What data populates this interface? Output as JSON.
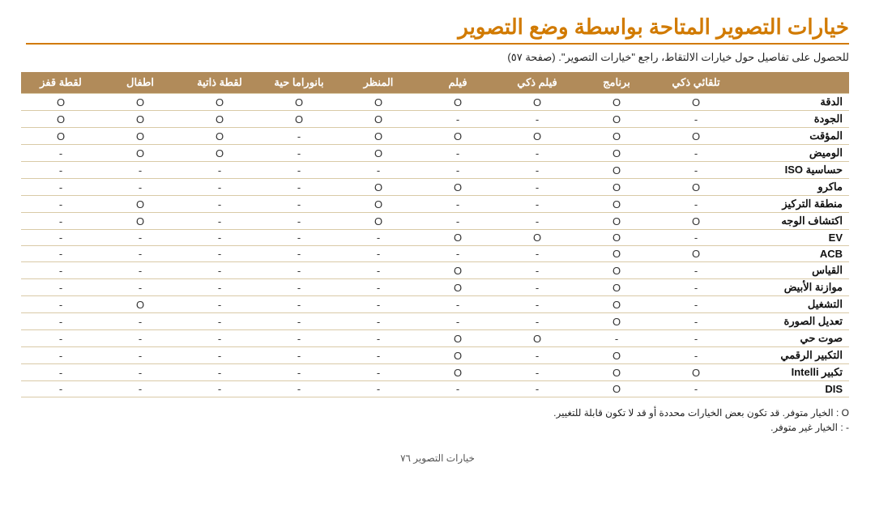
{
  "title": "خيارات التصوير المتاحة بواسطة وضع التصوير",
  "subtitle": "للحصول على تفاصيل حول خيارات الالتقاط، راجع \"خيارات التصوير\". (صفحة ٥٧)",
  "columns": [
    "تلقائي ذكي",
    "برنامج",
    "فيلم ذكي",
    "فيلم",
    "المنظر",
    "بانوراما حية",
    "لقطة ذاتية",
    "اطفال",
    "لقطة قفز"
  ],
  "row_label_header": "",
  "yes": "O",
  "no": "-",
  "rows": [
    {
      "label": "الدقة",
      "cells": [
        "O",
        "O",
        "O",
        "O",
        "O",
        "O",
        "O",
        "O",
        "O"
      ]
    },
    {
      "label": "الجودة",
      "cells": [
        "-",
        "O",
        "-",
        "-",
        "O",
        "O",
        "O",
        "O",
        "O"
      ]
    },
    {
      "label": "المؤقت",
      "cells": [
        "O",
        "O",
        "O",
        "O",
        "O",
        "-",
        "O",
        "O",
        "O"
      ]
    },
    {
      "label": "الوميض",
      "cells": [
        "-",
        "O",
        "-",
        "-",
        "O",
        "-",
        "O",
        "O",
        "-"
      ]
    },
    {
      "label": "حساسية ISO",
      "cells": [
        "-",
        "O",
        "-",
        "-",
        "-",
        "-",
        "-",
        "-",
        "-"
      ]
    },
    {
      "label": "ماكرو",
      "cells": [
        "O",
        "O",
        "-",
        "O",
        "O",
        "-",
        "-",
        "-",
        "-"
      ]
    },
    {
      "label": "منطقة التركيز",
      "cells": [
        "-",
        "O",
        "-",
        "-",
        "O",
        "-",
        "-",
        "O",
        "-"
      ]
    },
    {
      "label": "اكتشاف الوجه",
      "cells": [
        "O",
        "O",
        "-",
        "-",
        "O",
        "-",
        "-",
        "O",
        "-"
      ]
    },
    {
      "label": "EV",
      "cells": [
        "-",
        "O",
        "O",
        "O",
        "-",
        "-",
        "-",
        "-",
        "-"
      ]
    },
    {
      "label": "ACB",
      "cells": [
        "O",
        "O",
        "-",
        "-",
        "-",
        "-",
        "-",
        "-",
        "-"
      ]
    },
    {
      "label": "القياس",
      "cells": [
        "-",
        "O",
        "-",
        "O",
        "-",
        "-",
        "-",
        "-",
        "-"
      ]
    },
    {
      "label": "موازنة الأبيض",
      "cells": [
        "-",
        "O",
        "-",
        "O",
        "-",
        "-",
        "-",
        "-",
        "-"
      ]
    },
    {
      "label": "التشغيل",
      "cells": [
        "-",
        "O",
        "-",
        "-",
        "-",
        "-",
        "-",
        "O",
        "-"
      ]
    },
    {
      "label": "تعديل الصورة",
      "cells": [
        "-",
        "O",
        "-",
        "-",
        "-",
        "-",
        "-",
        "-",
        "-"
      ]
    },
    {
      "label": "صوت حي",
      "cells": [
        "-",
        "-",
        "O",
        "O",
        "-",
        "-",
        "-",
        "-",
        "-"
      ]
    },
    {
      "label": "التكبير الرقمي",
      "cells": [
        "-",
        "O",
        "-",
        "O",
        "-",
        "-",
        "-",
        "-",
        "-"
      ]
    },
    {
      "label": "تكبير Intelli",
      "cells": [
        "O",
        "O",
        "-",
        "O",
        "-",
        "-",
        "-",
        "-",
        "-"
      ]
    },
    {
      "label": "DIS",
      "cells": [
        "-",
        "O",
        "-",
        "-",
        "-",
        "-",
        "-",
        "-",
        "-"
      ]
    }
  ],
  "legend": {
    "yes": "O : الخيار متوفر. قد تكون بعض الخيارات محددة أو قد لا تكون قابلة للتغيير.",
    "no": "- : الخيار غير متوفر."
  },
  "footer": "خيارات التصوير   ٧٦"
}
